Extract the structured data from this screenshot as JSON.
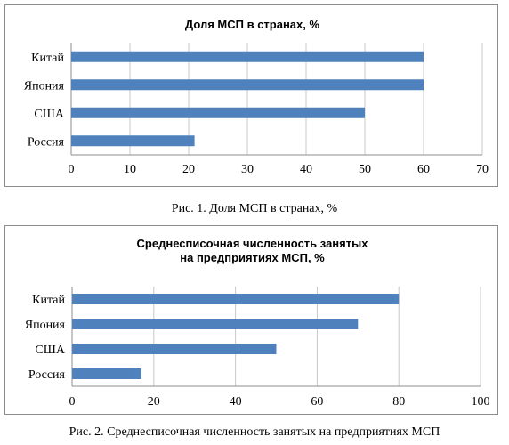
{
  "chart_data": [
    {
      "type": "bar",
      "orientation": "horizontal",
      "title": [
        "Доля МСП в странах, %"
      ],
      "categories": [
        "Китай",
        "Япония",
        "США",
        "Россия"
      ],
      "values": [
        60,
        60,
        50,
        21
      ],
      "xlim": [
        0,
        70
      ],
      "xticks": [
        0,
        10,
        20,
        30,
        40,
        50,
        60,
        70
      ],
      "grid": true,
      "bar_color": "#4f81bd",
      "caption": "Рис. 1. Доля МСП в странах, %"
    },
    {
      "type": "bar",
      "orientation": "horizontal",
      "title": [
        "Среднесписочная численность занятых",
        "на предприятиях МСП, %"
      ],
      "categories": [
        "Китай",
        "Япония",
        "США",
        "Россия"
      ],
      "values": [
        80,
        70,
        50,
        17
      ],
      "xlim": [
        0,
        100
      ],
      "xticks": [
        0,
        20,
        40,
        60,
        80,
        100
      ],
      "grid": true,
      "bar_color": "#4f81bd",
      "caption": "Рис. 2. Среднесписочная численность занятых на предприятиях МСП"
    }
  ]
}
